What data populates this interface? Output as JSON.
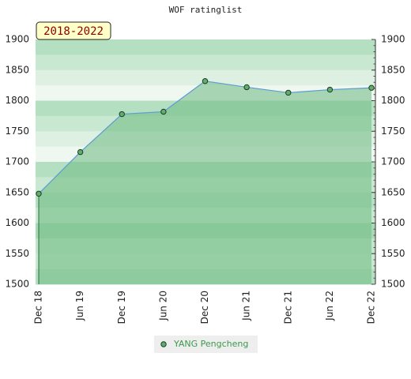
{
  "chart_data": {
    "type": "line",
    "title": "WOF ratinglist",
    "annotation": "2018-2022",
    "categories": [
      "Dec 18",
      "Jun 19",
      "Dec 19",
      "Jun 20",
      "Dec 20",
      "Jun 21",
      "Dec 21",
      "Jun 22",
      "Dec 22"
    ],
    "series": [
      {
        "name": "YANG Pengcheng",
        "color": "#5fae6e",
        "line_color": "#5b9bd5",
        "values": [
          1648,
          1716,
          1778,
          1782,
          1832,
          1822,
          1813,
          1818,
          1821
        ]
      }
    ],
    "ylim": [
      1500,
      1900
    ],
    "yticks": [
      1500,
      1550,
      1600,
      1650,
      1700,
      1750,
      1800,
      1850,
      1900
    ],
    "legend": "bottom",
    "area": true
  }
}
